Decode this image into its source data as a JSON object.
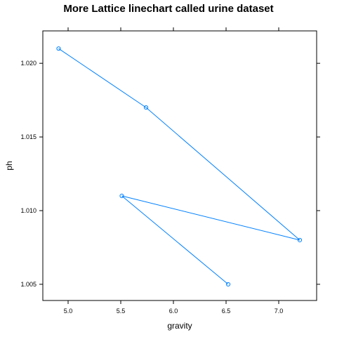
{
  "chart_data": {
    "type": "line",
    "title": "More Lattice linechart called urine dataset",
    "xlabel": "gravity",
    "ylabel": "ph",
    "x": [
      4.91,
      5.74,
      7.2,
      5.51,
      6.52
    ],
    "y": [
      1.021,
      1.017,
      1.008,
      1.011,
      1.005
    ],
    "xlim": [
      4.76,
      7.36
    ],
    "ylim": [
      1.0039,
      1.0222
    ],
    "xticks": [
      5.0,
      5.5,
      6.0,
      6.5,
      7.0
    ],
    "xtick_labels": [
      "5.0",
      "5.5",
      "6.0",
      "6.5",
      "7.0"
    ],
    "yticks": [
      1.005,
      1.01,
      1.015,
      1.02
    ],
    "ytick_labels": [
      "1.005",
      "1.010",
      "1.015",
      "1.020"
    ],
    "line_color": "#0080ff",
    "marker": "open-circle",
    "grid": false
  }
}
